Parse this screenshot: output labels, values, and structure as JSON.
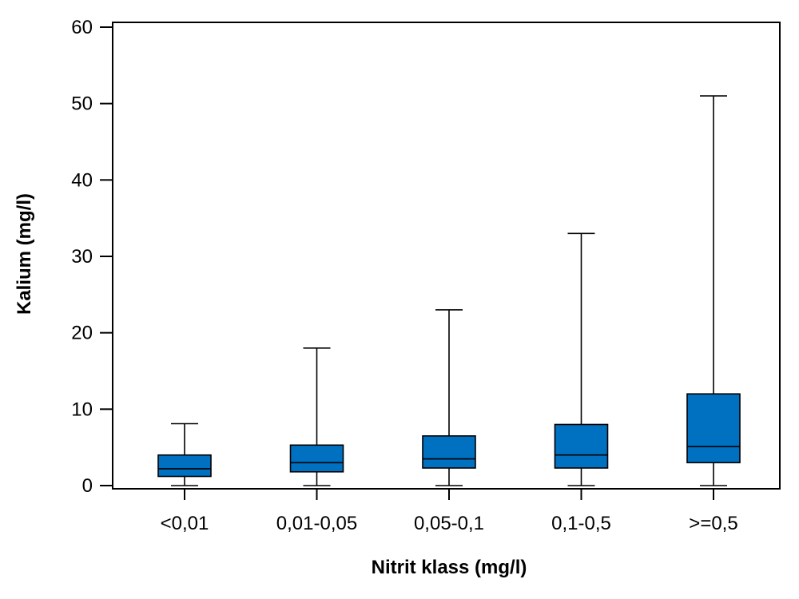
{
  "chart_data": {
    "type": "boxplot",
    "xlabel": "Nitrit klass (mg/l)",
    "ylabel": "Kalium (mg/l)",
    "ylim": [
      0,
      60
    ],
    "yticks": [
      0,
      10,
      20,
      30,
      40,
      50,
      60
    ],
    "box_color": "#0070c0",
    "grid": false,
    "categories": [
      "<0,01",
      "0,01-0,05",
      "0,05-0,1",
      "0,1-0,5",
      ">=0,5"
    ],
    "boxes": [
      {
        "min": 0,
        "q1": 1.2,
        "median": 2.2,
        "q3": 4.0,
        "max": 8.1
      },
      {
        "min": 0,
        "q1": 1.8,
        "median": 3.0,
        "q3": 5.3,
        "max": 18.0
      },
      {
        "min": 0,
        "q1": 2.3,
        "median": 3.5,
        "q3": 6.5,
        "max": 23.0
      },
      {
        "min": 0,
        "q1": 2.3,
        "median": 4.0,
        "q3": 8.0,
        "max": 33.0
      },
      {
        "min": 0,
        "q1": 3.0,
        "median": 5.1,
        "q3": 12.0,
        "max": 51.0
      }
    ]
  }
}
